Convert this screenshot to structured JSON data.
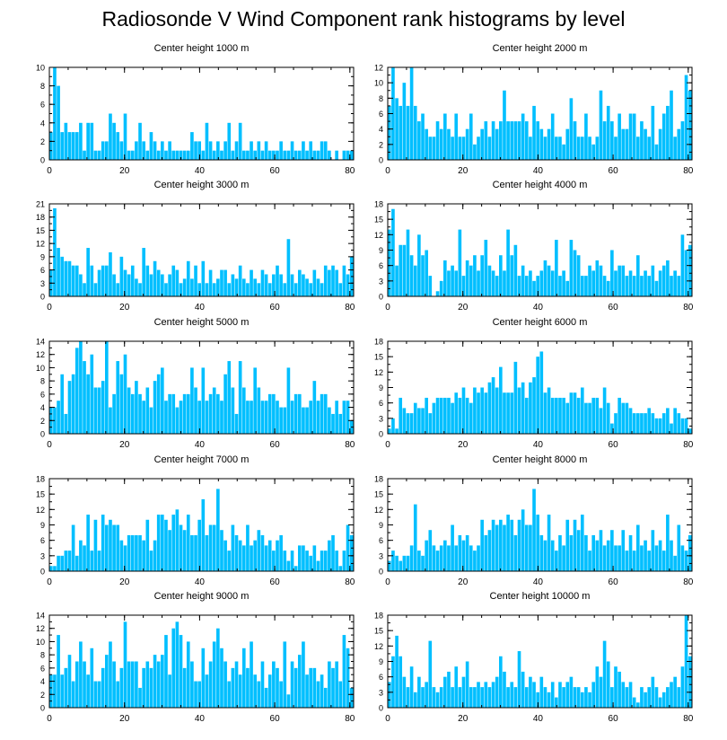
{
  "title": "Radiosonde V Wind Component rank histograms by level",
  "colors": {
    "bar": "#00BFFF",
    "bar_edge": "#1E90FF",
    "axis": "#000000",
    "background": "#FFFFFF"
  },
  "chart_data": [
    {
      "type": "bar",
      "title": "Center height 1000 m",
      "xlim": [
        0,
        81
      ],
      "ylim": [
        0,
        10
      ],
      "xticks": [
        0,
        20,
        40,
        60,
        80
      ],
      "yticks": [
        0,
        2,
        4,
        6,
        8,
        10
      ],
      "values": [
        3,
        10,
        8,
        3,
        4,
        3,
        3,
        3,
        4,
        1,
        4,
        4,
        1,
        1,
        2,
        2,
        5,
        4,
        3,
        2,
        5,
        1,
        1,
        2,
        4,
        2,
        1,
        3,
        2,
        1,
        2,
        1,
        2,
        1,
        1,
        1,
        1,
        1,
        3,
        2,
        2,
        1,
        4,
        2,
        1,
        2,
        1,
        2,
        4,
        1,
        2,
        4,
        1,
        1,
        2,
        1,
        2,
        1,
        2,
        1,
        1,
        1,
        2,
        1,
        1,
        2,
        1,
        1,
        2,
        1,
        2,
        1,
        1,
        2,
        2,
        1,
        0,
        1,
        0,
        1,
        1,
        1
      ]
    },
    {
      "type": "bar",
      "title": "Center height 2000 m",
      "xlim": [
        0,
        81
      ],
      "ylim": [
        0,
        12
      ],
      "xticks": [
        0,
        20,
        40,
        60,
        80
      ],
      "yticks": [
        0,
        2,
        4,
        6,
        8,
        10,
        12
      ],
      "values": [
        7,
        12,
        8,
        7,
        10,
        7,
        12,
        7,
        5,
        6,
        4,
        3,
        3,
        5,
        4,
        6,
        4,
        3,
        6,
        3,
        3,
        4,
        6,
        2,
        3,
        4,
        5,
        3,
        5,
        4,
        5,
        9,
        5,
        5,
        5,
        5,
        6,
        5,
        3,
        7,
        5,
        4,
        3,
        4,
        6,
        3,
        3,
        2,
        4,
        8,
        5,
        3,
        3,
        6,
        3,
        2,
        3,
        9,
        5,
        7,
        5,
        3,
        6,
        4,
        4,
        6,
        6,
        3,
        5,
        4,
        3,
        7,
        2,
        4,
        6,
        7,
        9,
        3,
        4,
        5,
        11,
        9
      ]
    },
    {
      "type": "bar",
      "title": "Center height 3000 m",
      "xlim": [
        0,
        81
      ],
      "ylim": [
        0,
        21
      ],
      "xticks": [
        0,
        20,
        40,
        60,
        80
      ],
      "yticks": [
        0,
        3,
        6,
        9,
        12,
        15,
        18,
        21
      ],
      "values": [
        6,
        20,
        11,
        9,
        8,
        8,
        7,
        7,
        5,
        3,
        11,
        7,
        3,
        6,
        7,
        7,
        10,
        5,
        3,
        9,
        6,
        5,
        7,
        4,
        3,
        11,
        7,
        5,
        8,
        6,
        5,
        3,
        5,
        7,
        6,
        3,
        4,
        8,
        4,
        7,
        3,
        8,
        3,
        6,
        3,
        4,
        6,
        6,
        3,
        5,
        4,
        7,
        4,
        3,
        6,
        4,
        3,
        6,
        5,
        3,
        5,
        7,
        5,
        3,
        13,
        5,
        3,
        6,
        5,
        4,
        3,
        6,
        4,
        3,
        7,
        6,
        7,
        6,
        3,
        7,
        5,
        9
      ]
    },
    {
      "type": "bar",
      "title": "Center height 4000 m",
      "xlim": [
        0,
        81
      ],
      "ylim": [
        0,
        18
      ],
      "xticks": [
        0,
        20,
        40,
        60,
        80
      ],
      "yticks": [
        0,
        3,
        6,
        9,
        12,
        15,
        18
      ],
      "values": [
        13,
        17,
        6,
        10,
        10,
        13,
        8,
        6,
        12,
        8,
        9,
        4,
        0,
        1,
        3,
        7,
        5,
        6,
        5,
        13,
        4,
        7,
        6,
        8,
        5,
        8,
        11,
        6,
        5,
        4,
        8,
        5,
        13,
        8,
        10,
        4,
        6,
        4,
        5,
        3,
        4,
        5,
        7,
        6,
        5,
        11,
        4,
        5,
        3,
        11,
        9,
        8,
        4,
        4,
        6,
        5,
        7,
        6,
        4,
        3,
        9,
        5,
        6,
        6,
        4,
        5,
        4,
        8,
        4,
        5,
        4,
        6,
        3,
        5,
        6,
        7,
        4,
        5,
        4,
        12,
        9,
        10
      ]
    },
    {
      "type": "bar",
      "title": "Center height 5000 m",
      "xlim": [
        0,
        81
      ],
      "ylim": [
        0,
        14
      ],
      "xticks": [
        0,
        20,
        40,
        60,
        80
      ],
      "yticks": [
        0,
        2,
        4,
        6,
        8,
        10,
        12,
        14
      ],
      "values": [
        4,
        4,
        5,
        9,
        3,
        8,
        9,
        13,
        14,
        11,
        9,
        12,
        7,
        7,
        8,
        14,
        4,
        6,
        11,
        9,
        12,
        7,
        6,
        8,
        6,
        5,
        7,
        4,
        8,
        9,
        10,
        5,
        6,
        6,
        4,
        5,
        6,
        6,
        10,
        7,
        5,
        10,
        5,
        6,
        7,
        6,
        5,
        9,
        11,
        7,
        3,
        11,
        7,
        5,
        5,
        10,
        7,
        5,
        5,
        6,
        6,
        5,
        4,
        4,
        10,
        5,
        6,
        6,
        4,
        4,
        5,
        8,
        5,
        6,
        6,
        4,
        3,
        5,
        3,
        5,
        5,
        2
      ]
    },
    {
      "type": "bar",
      "title": "Center height 6000 m",
      "xlim": [
        0,
        81
      ],
      "ylim": [
        0,
        18
      ],
      "xticks": [
        0,
        20,
        40,
        60,
        80
      ],
      "yticks": [
        0,
        3,
        6,
        9,
        12,
        15,
        18
      ],
      "values": [
        1,
        3,
        1,
        7,
        5,
        4,
        4,
        6,
        5,
        5,
        7,
        4,
        6,
        7,
        7,
        7,
        7,
        6,
        8,
        7,
        9,
        7,
        6,
        9,
        8,
        9,
        8,
        10,
        11,
        9,
        13,
        8,
        8,
        8,
        14,
        9,
        10,
        7,
        10,
        11,
        15,
        16,
        8,
        9,
        7,
        7,
        7,
        7,
        6,
        8,
        8,
        7,
        9,
        6,
        6,
        7,
        7,
        5,
        9,
        6,
        2,
        4,
        7,
        6,
        6,
        5,
        4,
        4,
        4,
        4,
        5,
        4,
        3,
        3,
        4,
        5,
        2,
        5,
        4,
        3,
        3,
        1
      ]
    },
    {
      "type": "bar",
      "title": "Center height 7000 m",
      "xlim": [
        0,
        81
      ],
      "ylim": [
        0,
        18
      ],
      "xticks": [
        0,
        20,
        40,
        60,
        80
      ],
      "yticks": [
        0,
        3,
        6,
        9,
        12,
        15,
        18
      ],
      "values": [
        1,
        1,
        3,
        3,
        4,
        4,
        9,
        3,
        6,
        5,
        11,
        4,
        10,
        4,
        11,
        9,
        10,
        9,
        9,
        6,
        5,
        7,
        7,
        7,
        7,
        6,
        10,
        4,
        6,
        11,
        11,
        10,
        8,
        11,
        12,
        9,
        8,
        11,
        7,
        7,
        10,
        14,
        7,
        9,
        9,
        16,
        8,
        6,
        4,
        9,
        7,
        6,
        5,
        9,
        5,
        6,
        8,
        7,
        5,
        6,
        4,
        6,
        7,
        4,
        2,
        4,
        1,
        5,
        5,
        4,
        3,
        5,
        2,
        4,
        4,
        6,
        7,
        4,
        1,
        4,
        9,
        7
      ]
    },
    {
      "type": "bar",
      "title": "Center height 8000 m",
      "xlim": [
        0,
        81
      ],
      "ylim": [
        0,
        18
      ],
      "xticks": [
        0,
        20,
        40,
        60,
        80
      ],
      "yticks": [
        0,
        3,
        6,
        9,
        12,
        15,
        18
      ],
      "values": [
        2,
        4,
        3,
        2,
        3,
        3,
        5,
        13,
        4,
        3,
        6,
        8,
        5,
        4,
        5,
        6,
        5,
        9,
        5,
        7,
        6,
        7,
        5,
        4,
        5,
        10,
        7,
        8,
        10,
        9,
        10,
        9,
        11,
        10,
        7,
        10,
        12,
        9,
        9,
        16,
        11,
        7,
        6,
        11,
        6,
        4,
        7,
        5,
        10,
        7,
        10,
        8,
        11,
        7,
        4,
        7,
        6,
        8,
        5,
        6,
        8,
        5,
        5,
        8,
        4,
        7,
        4,
        9,
        5,
        6,
        4,
        8,
        5,
        6,
        4,
        11,
        6,
        3,
        9,
        5,
        4,
        7
      ]
    },
    {
      "type": "bar",
      "title": "Center height 9000 m",
      "xlim": [
        0,
        81
      ],
      "ylim": [
        0,
        14
      ],
      "xticks": [
        0,
        20,
        40,
        60,
        80
      ],
      "yticks": [
        0,
        2,
        4,
        6,
        8,
        10,
        12,
        14
      ],
      "values": [
        5,
        5,
        11,
        5,
        6,
        8,
        4,
        7,
        10,
        7,
        5,
        9,
        4,
        4,
        6,
        8,
        10,
        7,
        4,
        6,
        13,
        7,
        7,
        7,
        3,
        6,
        7,
        6,
        8,
        7,
        8,
        11,
        5,
        12,
        13,
        11,
        6,
        10,
        7,
        4,
        4,
        9,
        5,
        7,
        10,
        12,
        9,
        7,
        4,
        6,
        7,
        5,
        9,
        6,
        10,
        5,
        4,
        7,
        3,
        5,
        7,
        6,
        4,
        10,
        2,
        7,
        6,
        8,
        10,
        5,
        6,
        6,
        4,
        5,
        3,
        7,
        6,
        7,
        4,
        11,
        9,
        3
      ]
    },
    {
      "type": "bar",
      "title": "Center height 10000 m",
      "xlim": [
        0,
        81
      ],
      "ylim": [
        0,
        18
      ],
      "xticks": [
        0,
        20,
        40,
        60,
        80
      ],
      "yticks": [
        0,
        3,
        6,
        9,
        12,
        15,
        18
      ],
      "values": [
        5,
        10,
        14,
        10,
        6,
        4,
        8,
        3,
        6,
        4,
        5,
        13,
        4,
        3,
        4,
        6,
        7,
        4,
        8,
        4,
        6,
        9,
        4,
        4,
        5,
        4,
        5,
        4,
        5,
        6,
        10,
        7,
        4,
        5,
        4,
        11,
        7,
        4,
        6,
        5,
        3,
        6,
        4,
        3,
        5,
        2,
        5,
        4,
        5,
        6,
        4,
        4,
        3,
        4,
        3,
        5,
        8,
        6,
        13,
        9,
        4,
        8,
        7,
        5,
        4,
        5,
        2,
        1,
        4,
        3,
        4,
        6,
        4,
        2,
        3,
        4,
        5,
        6,
        4,
        8,
        18,
        10
      ]
    }
  ]
}
